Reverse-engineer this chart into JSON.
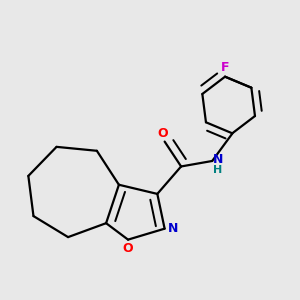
{
  "background_color": "#e8e8e8",
  "atom_colors": {
    "C": "#000000",
    "N": "#0000cd",
    "O": "#ff0000",
    "F": "#cc00cc",
    "H": "#008080"
  },
  "bond_color": "#000000",
  "bond_width": 1.6,
  "figsize": [
    3.0,
    3.0
  ],
  "dpi": 100
}
